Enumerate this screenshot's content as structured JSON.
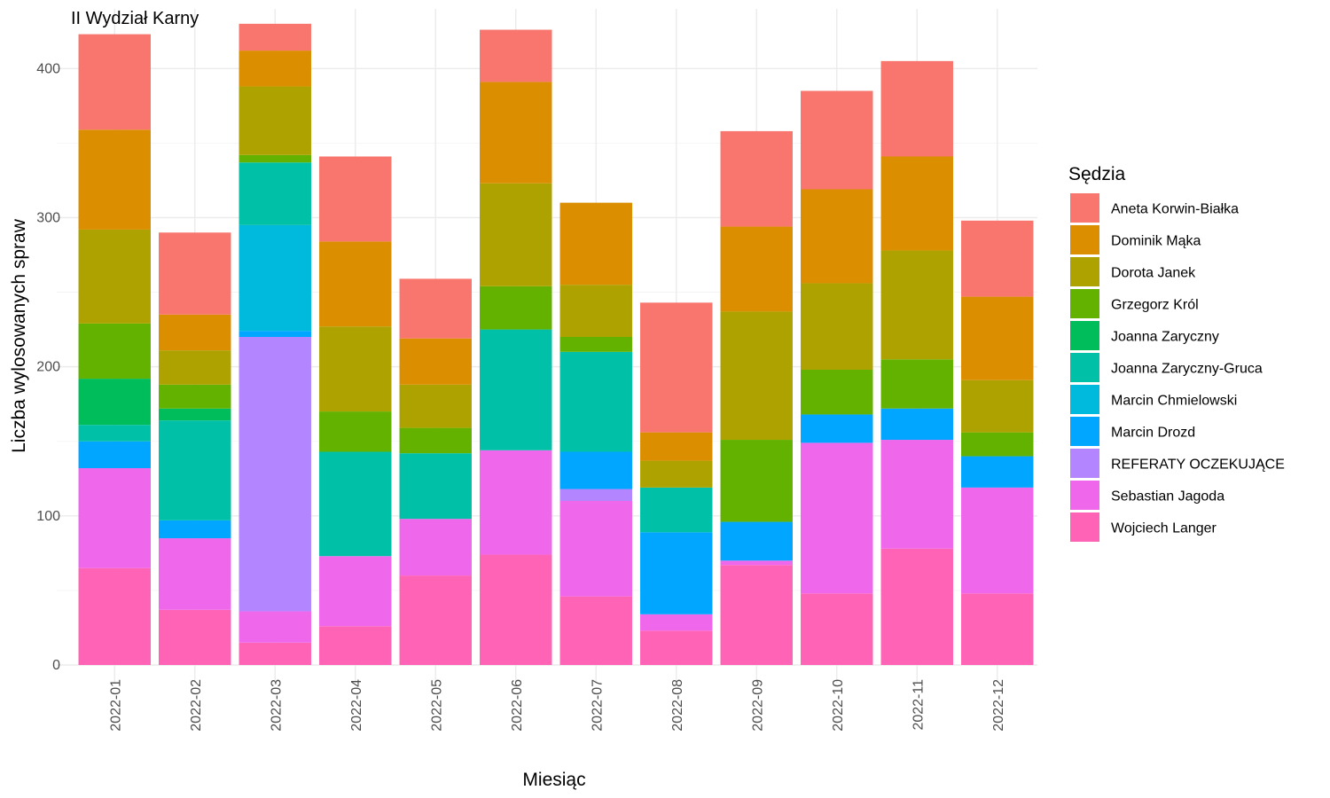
{
  "chart_data": {
    "type": "bar",
    "stacked": true,
    "title": "II Wydział Karny",
    "xlabel": "Miesiąc",
    "ylabel": "Liczba wylosowanych spraw",
    "ylim": [
      0,
      440
    ],
    "yticks": [
      0,
      100,
      200,
      300,
      400
    ],
    "grid": true,
    "legend_position": "right",
    "legend_title": "Sędzia",
    "categories": [
      "2022-01",
      "2022-02",
      "2022-03",
      "2022-04",
      "2022-05",
      "2022-06",
      "2022-07",
      "2022-08",
      "2022-09",
      "2022-10",
      "2022-11",
      "2022-12"
    ],
    "series": [
      {
        "name": "Aneta Korwin-Białka",
        "color": "#F8766D",
        "values": [
          64,
          55,
          18,
          57,
          40,
          35,
          0,
          87,
          64,
          66,
          64,
          51
        ]
      },
      {
        "name": "Dominik Mąka",
        "color": "#DB8E00",
        "values": [
          67,
          24,
          24,
          57,
          31,
          68,
          55,
          19,
          57,
          63,
          63,
          56
        ]
      },
      {
        "name": "Dorota Janek",
        "color": "#AEA200",
        "values": [
          63,
          23,
          46,
          57,
          29,
          69,
          35,
          18,
          86,
          58,
          73,
          35
        ]
      },
      {
        "name": "Grzegorz Król",
        "color": "#64B200",
        "values": [
          37,
          16,
          5,
          27,
          17,
          29,
          10,
          0,
          55,
          30,
          33,
          16
        ]
      },
      {
        "name": "Joanna Zaryczny",
        "color": "#00BD5C",
        "values": [
          31,
          8,
          0,
          0,
          0,
          0,
          0,
          0,
          0,
          0,
          0,
          0
        ]
      },
      {
        "name": "Joanna Zaryczny-Gruca",
        "color": "#00C1A7",
        "values": [
          11,
          67,
          42,
          70,
          44,
          81,
          67,
          30,
          0,
          0,
          0,
          0
        ]
      },
      {
        "name": "Marcin Chmielowski",
        "color": "#00BADE",
        "values": [
          0,
          0,
          71,
          0,
          0,
          0,
          0,
          0,
          0,
          0,
          0,
          0
        ]
      },
      {
        "name": "Marcin Drozd",
        "color": "#00A6FF",
        "values": [
          18,
          12,
          4,
          0,
          0,
          0,
          25,
          55,
          26,
          19,
          21,
          21
        ]
      },
      {
        "name": "REFERATY OCZEKUJĄCE",
        "color": "#B385FF",
        "values": [
          0,
          0,
          184,
          0,
          0,
          0,
          8,
          0,
          0,
          0,
          0,
          0
        ]
      },
      {
        "name": "Sebastian Jagoda",
        "color": "#EF67EB",
        "values": [
          67,
          48,
          21,
          47,
          38,
          70,
          64,
          11,
          3,
          101,
          73,
          71
        ]
      },
      {
        "name": "Wojciech Langer",
        "color": "#FF63B6",
        "values": [
          65,
          37,
          15,
          26,
          60,
          74,
          46,
          23,
          67,
          48,
          78,
          48
        ]
      }
    ]
  }
}
